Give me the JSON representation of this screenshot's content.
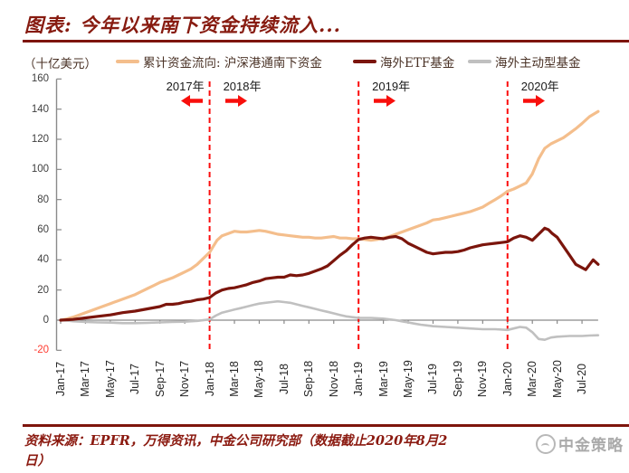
{
  "title": "图表: 今年以来南下资金持续流入...",
  "unit_label": "（十亿美元）",
  "legend": [
    {
      "label": "累计资金流向: 沪深港通南下资金",
      "color": "#F4BE8C"
    },
    {
      "label": "海外ETF基金",
      "color": "#7B150C"
    },
    {
      "label": "海外主动型基金",
      "color": "#C0C0C0"
    }
  ],
  "annotations": {
    "years": [
      {
        "label": "2017年",
        "arrow": "left",
        "anchor_month": 12,
        "side": "left"
      },
      {
        "label": "2018年",
        "arrow": "right",
        "anchor_month": 12,
        "side": "right"
      },
      {
        "label": "2019年",
        "arrow": "right",
        "anchor_month": 24,
        "side": "right"
      },
      {
        "label": "2020年",
        "arrow": "right",
        "anchor_month": 36,
        "side": "right"
      }
    ],
    "arrow_color": "#F80F0C"
  },
  "chart_data": {
    "type": "line",
    "title": "图表: 今年以来南下资金持续流入...",
    "ylabel": "（十亿美元）",
    "ylim": [
      -20,
      160
    ],
    "ytick_interval": 20,
    "ytick_labels": [
      "160",
      "140",
      "120",
      "100",
      "80",
      "60",
      "40",
      "20",
      "0",
      "-20"
    ],
    "negative_tick_color": "#FF3B30",
    "axis_color": "#8a8a8a",
    "gridlines": false,
    "legend_position": "top",
    "x_unit": "months since Jan-2017",
    "xtick_labels": [
      "Jan-17",
      "Mar-17",
      "May-17",
      "Jul-17",
      "Sep-17",
      "Nov-17",
      "Jan-18",
      "Mar-18",
      "May-18",
      "Jul-18",
      "Sep-18",
      "Nov-18",
      "Jan-19",
      "Mar-19",
      "May-19",
      "Jul-19",
      "Sep-19",
      "Nov-19",
      "Jan-20",
      "Mar-20",
      "May-20",
      "Jul-20"
    ],
    "vlines": [
      {
        "month": 12,
        "label": "Jan-18",
        "color": "#FB0D0D",
        "style": "dashed"
      },
      {
        "month": 24,
        "label": "Jan-19",
        "color": "#FB0D0D",
        "style": "dashed"
      },
      {
        "month": 36,
        "label": "Jan-20",
        "color": "#FB0D0D",
        "style": "dashed"
      }
    ],
    "series": [
      {
        "name": "海外主动型基金",
        "color": "#C0C0C0",
        "width": 2.6,
        "points": [
          [
            0,
            0
          ],
          [
            0.5,
            -0.3
          ],
          [
            1,
            -0.7
          ],
          [
            2,
            -1.2
          ],
          [
            3,
            -1.5
          ],
          [
            4,
            -1.6
          ],
          [
            5,
            -2
          ],
          [
            6,
            -2
          ],
          [
            7,
            -1.8
          ],
          [
            8,
            -1.5
          ],
          [
            9,
            -1.2
          ],
          [
            10,
            -1
          ],
          [
            11,
            -0.5
          ],
          [
            12,
            0.5
          ],
          [
            12.5,
            3
          ],
          [
            13,
            5
          ],
          [
            13.5,
            6
          ],
          [
            14,
            7
          ],
          [
            14.5,
            8
          ],
          [
            15,
            9
          ],
          [
            15.5,
            10
          ],
          [
            16,
            11
          ],
          [
            16.5,
            11.5
          ],
          [
            17,
            12
          ],
          [
            17.5,
            12.5
          ],
          [
            18,
            12
          ],
          [
            18.5,
            11.5
          ],
          [
            19,
            10.5
          ],
          [
            19.5,
            9.5
          ],
          [
            20,
            8.5
          ],
          [
            20.5,
            7.5
          ],
          [
            21,
            6.5
          ],
          [
            21.5,
            5.5
          ],
          [
            22,
            4.5
          ],
          [
            22.5,
            3.5
          ],
          [
            23,
            2.5
          ],
          [
            23.5,
            2
          ],
          [
            24,
            1.5
          ],
          [
            25,
            1.5
          ],
          [
            26,
            1
          ],
          [
            26.5,
            0.5
          ],
          [
            27,
            0
          ],
          [
            27.5,
            -0.8
          ],
          [
            28,
            -1.5
          ],
          [
            28.5,
            -2.3
          ],
          [
            29,
            -3
          ],
          [
            29.5,
            -3.5
          ],
          [
            30,
            -4
          ],
          [
            31,
            -4.5
          ],
          [
            32,
            -5
          ],
          [
            33,
            -5.5
          ],
          [
            34,
            -6
          ],
          [
            35,
            -6
          ],
          [
            36,
            -6.5
          ],
          [
            36.5,
            -5.5
          ],
          [
            37,
            -4.5
          ],
          [
            37.5,
            -5
          ],
          [
            38,
            -8
          ],
          [
            38.5,
            -12.5
          ],
          [
            39,
            -13
          ],
          [
            39.5,
            -11.5
          ],
          [
            40,
            -11
          ],
          [
            41,
            -10.5
          ],
          [
            42,
            -10.5
          ],
          [
            42.6,
            -10.2
          ],
          [
            43.3,
            -10
          ]
        ]
      },
      {
        "name": "累计资金流向: 沪深港通南下资金",
        "color": "#F4BE8C",
        "width": 3.2,
        "points": [
          [
            0,
            0
          ],
          [
            0.5,
            0.8
          ],
          [
            1,
            2
          ],
          [
            1.5,
            3.5
          ],
          [
            2,
            5
          ],
          [
            2.5,
            6.5
          ],
          [
            3,
            8
          ],
          [
            3.5,
            9.5
          ],
          [
            4,
            11
          ],
          [
            4.5,
            12.5
          ],
          [
            5,
            14
          ],
          [
            5.5,
            15.5
          ],
          [
            6,
            17
          ],
          [
            6.5,
            19
          ],
          [
            7,
            21
          ],
          [
            7.5,
            23
          ],
          [
            8,
            25
          ],
          [
            8.5,
            26.5
          ],
          [
            9,
            28
          ],
          [
            9.5,
            30
          ],
          [
            10,
            32
          ],
          [
            10.5,
            34
          ],
          [
            11,
            37
          ],
          [
            11.5,
            41
          ],
          [
            12,
            45
          ],
          [
            12.3,
            49
          ],
          [
            12.6,
            53
          ],
          [
            13,
            56
          ],
          [
            13.5,
            57.5
          ],
          [
            14,
            59
          ],
          [
            14.5,
            58.5
          ],
          [
            15,
            58.5
          ],
          [
            15.5,
            59
          ],
          [
            16,
            59.5
          ],
          [
            16.5,
            59
          ],
          [
            17,
            58
          ],
          [
            17.5,
            57
          ],
          [
            18,
            56.5
          ],
          [
            18.5,
            56
          ],
          [
            19,
            55.5
          ],
          [
            19.5,
            55
          ],
          [
            20,
            55
          ],
          [
            20.5,
            54.5
          ],
          [
            21,
            54.5
          ],
          [
            21.5,
            55
          ],
          [
            22,
            55.5
          ],
          [
            22.5,
            54.5
          ],
          [
            23,
            54.5
          ],
          [
            23.5,
            54
          ],
          [
            24,
            54
          ],
          [
            24.5,
            53.5
          ],
          [
            25,
            53
          ],
          [
            25.5,
            53.5
          ],
          [
            26,
            54.5
          ],
          [
            26.5,
            55.5
          ],
          [
            27,
            57
          ],
          [
            27.5,
            58.5
          ],
          [
            28,
            60
          ],
          [
            28.5,
            61.5
          ],
          [
            29,
            63
          ],
          [
            29.5,
            64.5
          ],
          [
            30,
            66.5
          ],
          [
            30.5,
            67
          ],
          [
            31,
            68
          ],
          [
            31.5,
            69
          ],
          [
            32,
            70
          ],
          [
            32.5,
            71
          ],
          [
            33,
            72
          ],
          [
            33.5,
            73.5
          ],
          [
            34,
            75
          ],
          [
            34.5,
            77.5
          ],
          [
            35,
            80
          ],
          [
            35.5,
            82.5
          ],
          [
            36,
            85.5
          ],
          [
            36.5,
            87
          ],
          [
            37,
            89
          ],
          [
            37.5,
            91
          ],
          [
            38,
            97
          ],
          [
            38.5,
            107
          ],
          [
            39,
            114
          ],
          [
            39.5,
            117
          ],
          [
            40,
            119
          ],
          [
            40.5,
            121
          ],
          [
            41,
            124
          ],
          [
            41.5,
            127
          ],
          [
            42,
            130.5
          ],
          [
            42.6,
            135
          ],
          [
            43.3,
            138.5
          ]
        ]
      },
      {
        "name": "海外ETF基金",
        "color": "#7B150C",
        "width": 3.2,
        "points": [
          [
            0,
            0
          ],
          [
            1,
            0.5
          ],
          [
            2,
            1.5
          ],
          [
            3,
            2.5
          ],
          [
            4,
            3.5
          ],
          [
            5,
            5
          ],
          [
            6,
            6
          ],
          [
            7,
            7.5
          ],
          [
            8,
            9
          ],
          [
            8.5,
            10.5
          ],
          [
            9,
            10.5
          ],
          [
            9.5,
            11
          ],
          [
            10,
            12
          ],
          [
            10.5,
            12.5
          ],
          [
            11,
            13.5
          ],
          [
            11.5,
            14
          ],
          [
            12,
            15
          ],
          [
            12.5,
            18
          ],
          [
            13,
            20
          ],
          [
            13.5,
            21
          ],
          [
            14,
            21.5
          ],
          [
            14.5,
            22.5
          ],
          [
            15,
            23.5
          ],
          [
            15.5,
            25
          ],
          [
            16,
            26
          ],
          [
            16.5,
            27.5
          ],
          [
            17,
            28
          ],
          [
            17.5,
            28.5
          ],
          [
            18,
            28.5
          ],
          [
            18.5,
            30
          ],
          [
            19,
            29.5
          ],
          [
            19.5,
            30
          ],
          [
            20,
            31
          ],
          [
            20.5,
            32.5
          ],
          [
            21,
            34
          ],
          [
            21.5,
            36
          ],
          [
            22,
            39.5
          ],
          [
            22.5,
            43
          ],
          [
            23,
            46
          ],
          [
            23.5,
            50
          ],
          [
            24,
            53.5
          ],
          [
            24.5,
            54.5
          ],
          [
            25,
            55
          ],
          [
            25.5,
            54.5
          ],
          [
            26,
            54
          ],
          [
            26.5,
            55
          ],
          [
            27,
            55.5
          ],
          [
            27.5,
            54
          ],
          [
            28,
            51
          ],
          [
            28.5,
            49
          ],
          [
            29,
            47
          ],
          [
            29.5,
            45
          ],
          [
            30,
            44
          ],
          [
            30.5,
            44.5
          ],
          [
            31,
            45
          ],
          [
            31.5,
            45
          ],
          [
            32,
            45.5
          ],
          [
            32.5,
            46.5
          ],
          [
            33,
            48
          ],
          [
            33.5,
            49
          ],
          [
            34,
            50
          ],
          [
            34.5,
            50.5
          ],
          [
            35,
            51
          ],
          [
            35.5,
            51.5
          ],
          [
            36,
            52
          ],
          [
            36.5,
            54.5
          ],
          [
            37,
            56
          ],
          [
            37.5,
            55
          ],
          [
            38,
            53
          ],
          [
            38.5,
            57
          ],
          [
            39,
            61
          ],
          [
            39.3,
            60
          ],
          [
            39.6,
            57.5
          ],
          [
            40,
            55
          ],
          [
            40.5,
            49
          ],
          [
            41,
            43
          ],
          [
            41.5,
            37
          ],
          [
            42.3,
            33.5
          ],
          [
            42.9,
            40
          ],
          [
            43.3,
            37
          ]
        ]
      }
    ]
  },
  "footer": {
    "line1": "资料来源：EPFR，万得资讯，中金公司研究部（数据截止2020年8月2",
    "line2": "日）",
    "watermark": "中金策略"
  },
  "colors": {
    "title_maroon": "#871B10",
    "rule_maroon": "#7E150D",
    "dashed_line_red": "#FB0D0D",
    "arrow_red": "#F80F0C",
    "axis_gray": "#8a8a8a",
    "watermark_gray": "#a3a3a3"
  }
}
